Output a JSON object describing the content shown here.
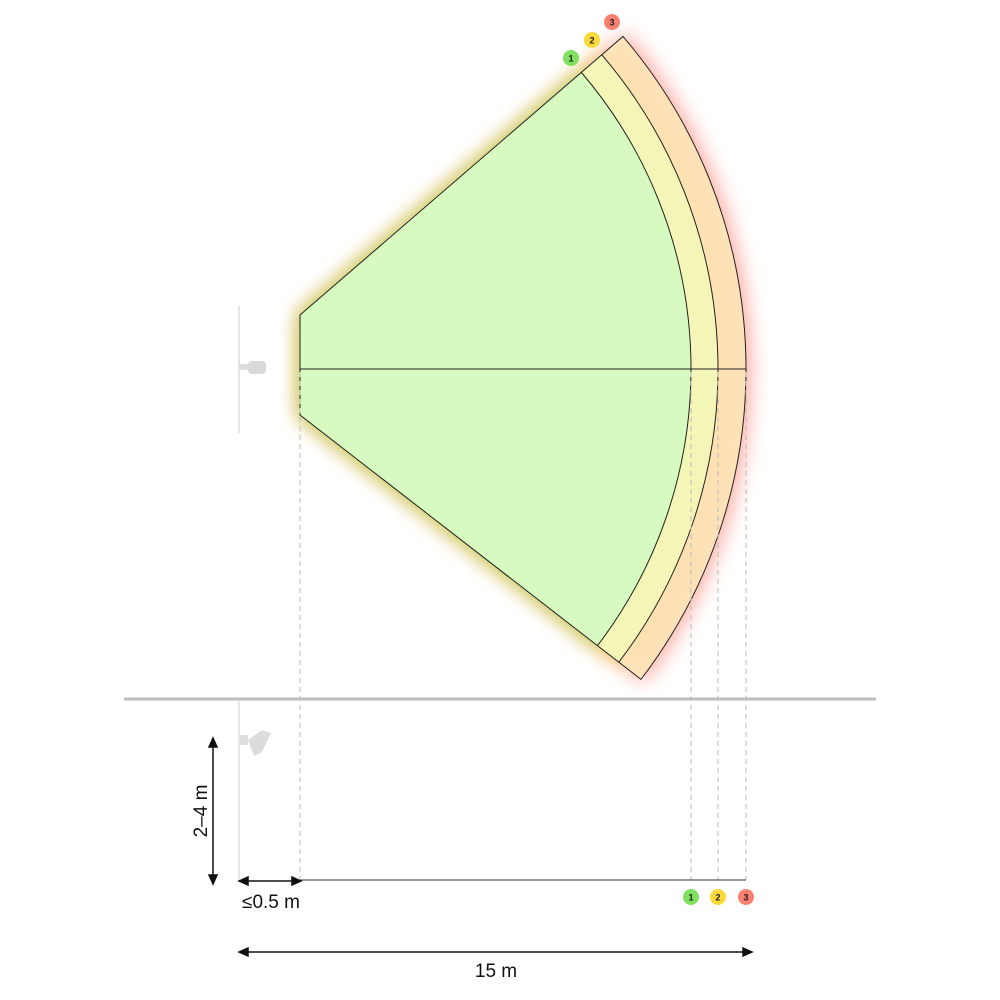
{
  "zones": [
    {
      "label": "1",
      "color": "#7ee05c"
    },
    {
      "label": "2",
      "color": "#fcd93a"
    },
    {
      "label": "3",
      "color": "#fb8070"
    }
  ],
  "fill_color": "#d4fbc2",
  "dimensions": {
    "height_label": "2–4 m",
    "offset_label": "≤0.5 m",
    "range_label": "15 m"
  },
  "icons": {
    "top_view_device": "camera-detector-icon",
    "side_view_device": "camera-detector-icon"
  }
}
